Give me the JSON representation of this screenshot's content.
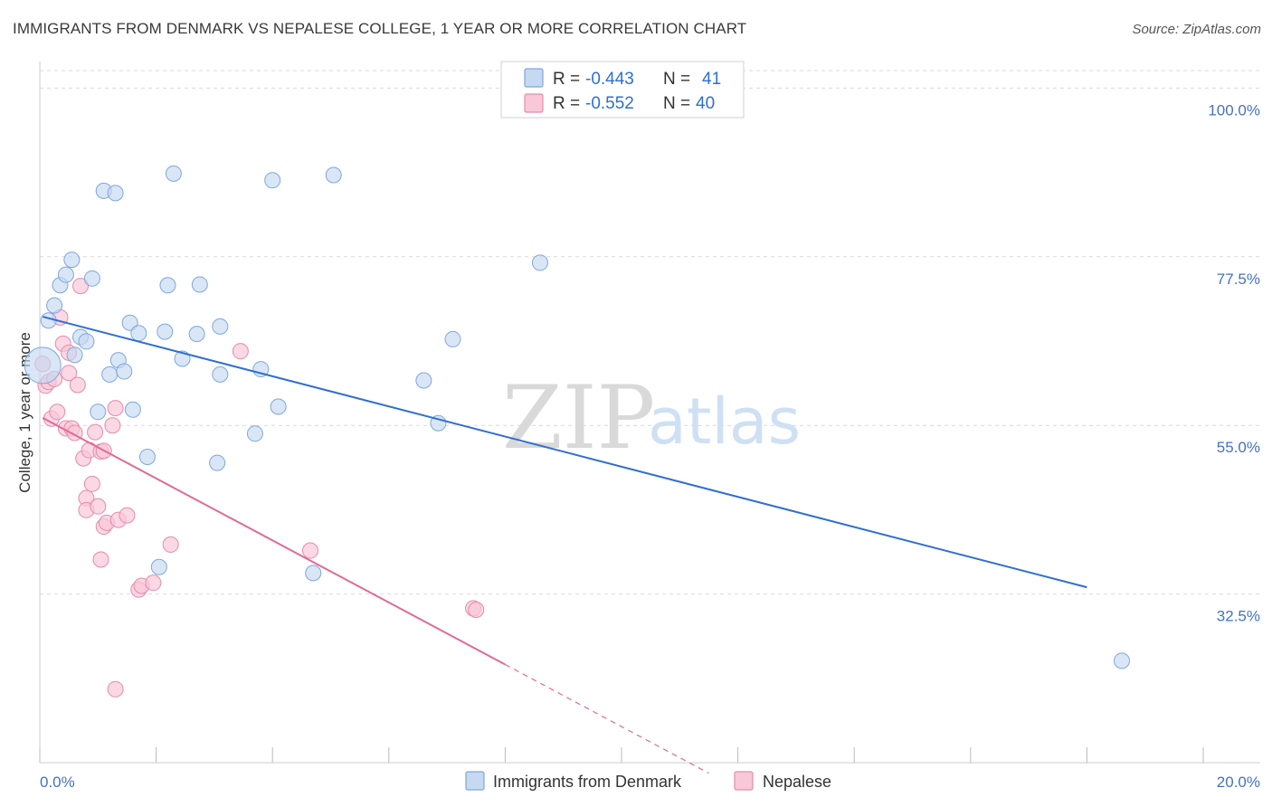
{
  "title": "IMMIGRANTS FROM DENMARK VS NEPALESE COLLEGE, 1 YEAR OR MORE CORRELATION CHART",
  "source": "Source: ZipAtlas.com",
  "watermark": {
    "zip": "ZIP",
    "atlas": "atlas"
  },
  "legend": {
    "rows": [
      {
        "r_label": "R =",
        "r_value": "-0.443",
        "n_label": "N =",
        "n_value": "41"
      },
      {
        "r_label": "R =",
        "r_value": "-0.552",
        "n_label": "N =",
        "n_value": "40"
      }
    ]
  },
  "bottom_legend": [
    "Immigrants from Denmark",
    "Nepalese"
  ],
  "colors": {
    "blue_fill": "#c5d9f1",
    "blue_stroke": "#7fa7dc",
    "blue_line": "#2e6fd1",
    "pink_fill": "#f8c8d8",
    "pink_stroke": "#e88aa8",
    "pink_line": "#e06a95",
    "grid": "#d9d9d9",
    "tick_text": "#4472c4"
  },
  "chart_data": {
    "type": "scatter",
    "title": "IMMIGRANTS FROM DENMARK VS NEPALESE COLLEGE, 1 YEAR OR MORE CORRELATION CHART",
    "xlabel": "",
    "ylabel": "College, 1 year or more",
    "xlim": [
      0,
      20
    ],
    "ylim": [
      10,
      102
    ],
    "x_tick_labels": [
      "0.0%",
      "20.0%"
    ],
    "y_ticks": [
      32.5,
      55.0,
      77.5,
      100.0
    ],
    "y_tick_labels": [
      "32.5%",
      "55.0%",
      "77.5%",
      "100.0%"
    ],
    "grid": true,
    "series": [
      {
        "name": "Immigrants from Denmark",
        "r": -0.443,
        "n": 41,
        "trend": {
          "x": [
            0.05,
            18.0
          ],
          "y": [
            69.5,
            33.4
          ]
        },
        "points": [
          {
            "x": 0.05,
            "y": 63.0,
            "big": true
          },
          {
            "x": 0.15,
            "y": 69.0
          },
          {
            "x": 0.25,
            "y": 71.0
          },
          {
            "x": 0.35,
            "y": 73.7
          },
          {
            "x": 0.45,
            "y": 75.1
          },
          {
            "x": 0.55,
            "y": 77.1
          },
          {
            "x": 0.6,
            "y": 64.4
          },
          {
            "x": 0.7,
            "y": 66.8
          },
          {
            "x": 0.8,
            "y": 66.2
          },
          {
            "x": 0.9,
            "y": 74.6
          },
          {
            "x": 1.0,
            "y": 56.8
          },
          {
            "x": 1.1,
            "y": 86.3
          },
          {
            "x": 1.2,
            "y": 61.8
          },
          {
            "x": 1.3,
            "y": 86.0
          },
          {
            "x": 1.35,
            "y": 63.7
          },
          {
            "x": 1.45,
            "y": 62.2
          },
          {
            "x": 1.55,
            "y": 68.7
          },
          {
            "x": 1.6,
            "y": 57.1
          },
          {
            "x": 1.7,
            "y": 67.3
          },
          {
            "x": 1.85,
            "y": 50.8
          },
          {
            "x": 2.05,
            "y": 36.1
          },
          {
            "x": 2.15,
            "y": 67.5
          },
          {
            "x": 2.2,
            "y": 73.7
          },
          {
            "x": 2.3,
            "y": 88.6
          },
          {
            "x": 2.45,
            "y": 63.9
          },
          {
            "x": 2.7,
            "y": 67.2
          },
          {
            "x": 2.75,
            "y": 73.8
          },
          {
            "x": 3.05,
            "y": 50.0
          },
          {
            "x": 3.1,
            "y": 61.8
          },
          {
            "x": 3.1,
            "y": 68.2
          },
          {
            "x": 3.7,
            "y": 53.9
          },
          {
            "x": 3.8,
            "y": 62.5
          },
          {
            "x": 4.0,
            "y": 87.7
          },
          {
            "x": 4.1,
            "y": 57.5
          },
          {
            "x": 4.7,
            "y": 35.3
          },
          {
            "x": 5.05,
            "y": 88.4
          },
          {
            "x": 6.6,
            "y": 61.0
          },
          {
            "x": 6.85,
            "y": 55.3
          },
          {
            "x": 7.1,
            "y": 66.5
          },
          {
            "x": 8.6,
            "y": 76.7
          },
          {
            "x": 18.6,
            "y": 23.6
          }
        ]
      },
      {
        "name": "Nepalese",
        "r": -0.552,
        "n": 40,
        "trend": {
          "x": [
            0.05,
            8.0
          ],
          "y": [
            56.0,
            23.1
          ]
        },
        "trend_dashed": {
          "x": [
            8.0,
            11.5
          ],
          "y": [
            23.1,
            8.6
          ]
        },
        "points": [
          {
            "x": 0.05,
            "y": 63.2
          },
          {
            "x": 0.1,
            "y": 60.3
          },
          {
            "x": 0.15,
            "y": 60.8
          },
          {
            "x": 0.2,
            "y": 55.9
          },
          {
            "x": 0.25,
            "y": 61.2
          },
          {
            "x": 0.3,
            "y": 56.8
          },
          {
            "x": 0.35,
            "y": 69.4
          },
          {
            "x": 0.4,
            "y": 65.9
          },
          {
            "x": 0.45,
            "y": 54.6
          },
          {
            "x": 0.5,
            "y": 62.0
          },
          {
            "x": 0.5,
            "y": 64.7
          },
          {
            "x": 0.55,
            "y": 54.6
          },
          {
            "x": 0.6,
            "y": 54.0
          },
          {
            "x": 0.65,
            "y": 60.4
          },
          {
            "x": 0.7,
            "y": 73.6
          },
          {
            "x": 0.75,
            "y": 50.6
          },
          {
            "x": 0.8,
            "y": 45.3
          },
          {
            "x": 0.8,
            "y": 43.7
          },
          {
            "x": 0.85,
            "y": 51.7
          },
          {
            "x": 0.9,
            "y": 47.2
          },
          {
            "x": 0.95,
            "y": 54.1
          },
          {
            "x": 1.0,
            "y": 44.2
          },
          {
            "x": 1.05,
            "y": 51.5
          },
          {
            "x": 1.1,
            "y": 51.6
          },
          {
            "x": 1.05,
            "y": 37.1
          },
          {
            "x": 1.1,
            "y": 41.5
          },
          {
            "x": 1.15,
            "y": 42.0
          },
          {
            "x": 1.25,
            "y": 55.0
          },
          {
            "x": 1.3,
            "y": 19.8
          },
          {
            "x": 1.3,
            "y": 57.3
          },
          {
            "x": 1.35,
            "y": 42.4
          },
          {
            "x": 1.5,
            "y": 43.0
          },
          {
            "x": 1.7,
            "y": 33.1
          },
          {
            "x": 1.75,
            "y": 33.6
          },
          {
            "x": 1.95,
            "y": 34.0
          },
          {
            "x": 2.25,
            "y": 39.1
          },
          {
            "x": 3.45,
            "y": 64.9
          },
          {
            "x": 4.65,
            "y": 38.3
          },
          {
            "x": 7.45,
            "y": 30.6
          },
          {
            "x": 7.5,
            "y": 30.4
          }
        ]
      }
    ]
  }
}
